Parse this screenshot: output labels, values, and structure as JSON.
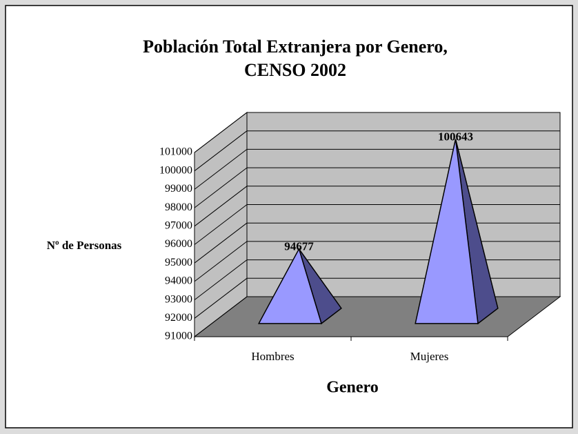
{
  "chart_data": {
    "type": "pyramid",
    "title": [
      "Población Total Extranjera por Genero,",
      "CENSO 2002"
    ],
    "x_label": "Genero",
    "y_label": "Nº de Personas",
    "categories": [
      "Hombres",
      "Mujeres"
    ],
    "values": [
      94677,
      100643
    ],
    "color": "#9999ff",
    "side_color": "#4d4d8c",
    "ylim": [
      91000,
      101000
    ],
    "yticks": [
      91000,
      92000,
      93000,
      94000,
      95000,
      96000,
      97000,
      98000,
      99000,
      100000,
      101000
    ],
    "grid": true
  }
}
